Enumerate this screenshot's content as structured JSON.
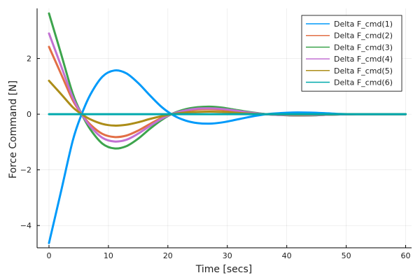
{
  "chart_data": {
    "type": "line",
    "title": "",
    "xlabel": "Time [secs]",
    "ylabel": "Force Command [N]",
    "xlim": [
      -2,
      61
    ],
    "ylim": [
      -4.8,
      3.8
    ],
    "xticks": [
      0,
      10,
      20,
      30,
      40,
      50,
      60
    ],
    "yticks": [
      -4,
      -2,
      0,
      2
    ],
    "grid": true,
    "legend": "top-right",
    "series": [
      {
        "name": "Delta F_cmd(1)",
        "color": "#009AFA",
        "x": [
          0,
          2,
          4,
          5.5,
          7,
          9,
          11,
          13,
          15,
          17,
          19,
          21,
          23,
          25,
          27,
          29,
          31,
          33,
          35,
          37,
          39,
          41,
          43,
          45,
          47,
          49,
          52,
          55,
          60
        ],
        "y": [
          -4.63,
          -2.8,
          -0.95,
          0.0,
          0.72,
          1.35,
          1.57,
          1.47,
          1.12,
          0.67,
          0.25,
          -0.05,
          -0.23,
          -0.32,
          -0.34,
          -0.3,
          -0.22,
          -0.13,
          -0.05,
          0.01,
          0.04,
          0.06,
          0.06,
          0.05,
          0.03,
          0.01,
          0.0,
          0.0,
          0.0
        ]
      },
      {
        "name": "Delta F_cmd(2)",
        "color": "#E26F46",
        "x": [
          0,
          2,
          4,
          5.5,
          7,
          9,
          11,
          13,
          15,
          17,
          19,
          21,
          23,
          25,
          27,
          29,
          31,
          33,
          35,
          37,
          39,
          41,
          43,
          45,
          47,
          49,
          52,
          55,
          60
        ],
        "y": [
          2.42,
          1.46,
          0.5,
          0.0,
          -0.38,
          -0.71,
          -0.82,
          -0.77,
          -0.59,
          -0.35,
          -0.13,
          0.03,
          0.12,
          0.17,
          0.18,
          0.16,
          0.12,
          0.07,
          0.03,
          -0.01,
          -0.02,
          -0.03,
          -0.03,
          -0.03,
          -0.02,
          -0.01,
          0.0,
          0.0,
          0.0
        ]
      },
      {
        "name": "Delta F_cmd(3)",
        "color": "#3DA44D",
        "x": [
          0,
          2,
          4,
          5.5,
          7,
          9,
          11,
          13,
          15,
          17,
          19,
          21,
          23,
          25,
          27,
          29,
          31,
          33,
          35,
          37,
          39,
          41,
          43,
          45,
          47,
          49,
          52,
          55,
          60
        ],
        "y": [
          3.62,
          2.19,
          0.74,
          0.0,
          -0.56,
          -1.06,
          -1.23,
          -1.15,
          -0.88,
          -0.52,
          -0.2,
          0.04,
          0.18,
          0.25,
          0.27,
          0.24,
          0.17,
          0.1,
          0.04,
          -0.01,
          -0.03,
          -0.05,
          -0.05,
          -0.04,
          -0.02,
          -0.01,
          0.0,
          0.0,
          0.0
        ]
      },
      {
        "name": "Delta F_cmd(4)",
        "color": "#C271D2",
        "x": [
          0,
          2,
          4,
          5.5,
          7,
          9,
          11,
          13,
          15,
          17,
          19,
          21,
          23,
          25,
          27,
          29,
          31,
          33,
          35,
          37,
          39,
          41,
          43,
          45,
          47,
          49,
          52,
          55,
          60
        ],
        "y": [
          2.9,
          1.75,
          0.6,
          0.0,
          -0.45,
          -0.85,
          -0.98,
          -0.92,
          -0.7,
          -0.42,
          -0.16,
          0.03,
          0.14,
          0.2,
          0.21,
          0.19,
          0.14,
          0.08,
          0.03,
          -0.01,
          -0.03,
          -0.04,
          -0.04,
          -0.03,
          -0.02,
          -0.01,
          0.0,
          0.0,
          0.0
        ]
      },
      {
        "name": "Delta F_cmd(5)",
        "color": "#AC8D18",
        "x": [
          0,
          2,
          4,
          5.5,
          7,
          9,
          11,
          13,
          15,
          17,
          19,
          21,
          23,
          25,
          27,
          29,
          31,
          33,
          35,
          37,
          39,
          41,
          43,
          45,
          47,
          49,
          52,
          55,
          60
        ],
        "y": [
          1.2,
          0.73,
          0.25,
          0.0,
          -0.19,
          -0.35,
          -0.41,
          -0.38,
          -0.29,
          -0.17,
          -0.07,
          0.01,
          0.06,
          0.08,
          0.09,
          0.08,
          0.06,
          0.03,
          0.01,
          0.0,
          -0.01,
          -0.02,
          -0.02,
          -0.01,
          -0.01,
          0.0,
          0.0,
          0.0,
          0.0
        ]
      },
      {
        "name": "Delta F_cmd(6)",
        "color": "#00A9AD",
        "x": [
          0,
          60
        ],
        "y": [
          0.0,
          0.0
        ]
      }
    ]
  }
}
